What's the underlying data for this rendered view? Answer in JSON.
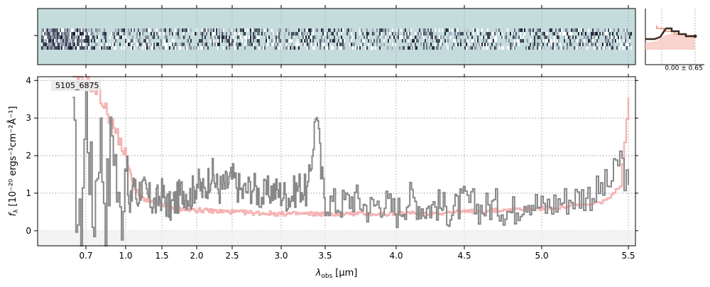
{
  "chart_data": {
    "type": "line",
    "object_label": "5105_6875",
    "xlabel_prefix": "λ",
    "xlabel_sub": "obs",
    "xlabel_unit": "[μm]",
    "ylabel_text": "f",
    "ylabel_sub": "λ",
    "ylabel_unit": "[10⁻²⁰ ergs⁻¹cm⁻²Å⁻¹]",
    "xticks": [
      {
        "value": 0.7,
        "label": "0.7"
      },
      {
        "value": 1.0,
        "label": "1.0"
      },
      {
        "value": 1.5,
        "label": "1.5"
      },
      {
        "value": 2.0,
        "label": "2.0"
      },
      {
        "value": 2.5,
        "label": "2.5"
      },
      {
        "value": 3.0,
        "label": "3.0"
      },
      {
        "value": 3.5,
        "label": "3.5"
      },
      {
        "value": 4.0,
        "label": "4.0"
      },
      {
        "value": 4.5,
        "label": "4.5"
      },
      {
        "value": 5.0,
        "label": "5.0"
      },
      {
        "value": 5.5,
        "label": "5.5"
      }
    ],
    "yticks": [
      {
        "value": 0,
        "label": "0"
      },
      {
        "value": 1,
        "label": "1"
      },
      {
        "value": 2,
        "label": "2"
      },
      {
        "value": 3,
        "label": "3"
      },
      {
        "value": 4,
        "label": "4"
      }
    ],
    "ylim": [
      -0.4,
      4.1
    ],
    "xlim": [
      0.55,
      5.55
    ],
    "profile_label": "0.00 ± 0.65",
    "grid": true,
    "colors": {
      "flux": "#888888",
      "error": "#f4a0a0",
      "profile": "#5a3a2a",
      "profile_model": "#f0a890",
      "image_bg": "#c5dcdc",
      "image_dark": "#1a1a2e"
    },
    "series": [
      {
        "role": "flux",
        "x": [
          0.6,
          0.65,
          0.7,
          0.75,
          0.8,
          0.85,
          0.9,
          0.95,
          1.0,
          1.05,
          1.1,
          1.15,
          1.2,
          1.3,
          1.4,
          1.5,
          1.6,
          1.7,
          1.8,
          1.9,
          2.0,
          2.1,
          2.2,
          2.3,
          2.4,
          2.5,
          2.6,
          2.7,
          2.8,
          2.9,
          3.0,
          3.1,
          3.2,
          3.3,
          3.4,
          3.45,
          3.5,
          3.6,
          3.7,
          3.8,
          3.9,
          4.0,
          4.1,
          4.2,
          4.3,
          4.4,
          4.5,
          4.6,
          4.7,
          4.8,
          4.9,
          5.0,
          5.1,
          5.2,
          5.3,
          5.4,
          5.45,
          5.5
        ],
        "y": [
          2.5,
          -0.3,
          3.5,
          0.2,
          2.8,
          0.5,
          3.0,
          0.1,
          2.2,
          0.3,
          1.5,
          0.8,
          1.2,
          0.9,
          0.7,
          1.0,
          0.6,
          0.8,
          1.1,
          0.9,
          1.3,
          1.0,
          1.6,
          1.1,
          1.2,
          1.4,
          1.0,
          1.2,
          0.9,
          1.1,
          1.0,
          0.9,
          1.2,
          1.0,
          3.3,
          1.5,
          0.8,
          0.7,
          0.9,
          0.6,
          0.8,
          0.5,
          0.9,
          0.6,
          0.7,
          0.5,
          0.8,
          0.6,
          0.7,
          0.5,
          0.9,
          0.6,
          0.8,
          0.9,
          1.0,
          1.3,
          2.0,
          1.0
        ]
      },
      {
        "role": "error",
        "x": [
          0.6,
          0.7,
          0.8,
          0.9,
          1.0,
          1.1,
          1.2,
          1.3,
          1.5,
          1.7,
          2.0,
          2.5,
          3.0,
          3.5,
          4.0,
          4.5,
          5.0,
          5.3,
          5.4,
          5.45,
          5.5
        ],
        "y": [
          4.0,
          4.0,
          3.6,
          2.8,
          2.0,
          1.2,
          0.9,
          0.8,
          0.7,
          0.6,
          0.55,
          0.5,
          0.45,
          0.45,
          0.45,
          0.5,
          0.6,
          0.7,
          0.9,
          1.2,
          3.5
        ]
      }
    ]
  }
}
